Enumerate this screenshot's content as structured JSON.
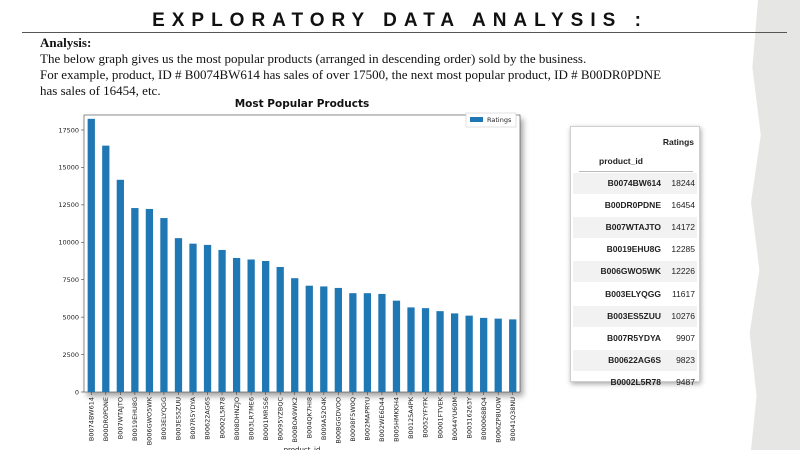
{
  "slide": {
    "title": "EXPLORATORY DATA ANALYSIS :",
    "analysis_heading": "Analysis:",
    "analysis_lines": [
      "The below graph gives  us the most popular products (arranged in descending order) sold by the business.",
      "For example, product, ID # B0074BW614 has sales of over 17500, the next most popular product, ID # B00DR0PDNE",
      "has sales of 16454, etc."
    ]
  },
  "chart_data": {
    "type": "bar",
    "title": "Most Popular Products",
    "xlabel": "product_id",
    "ylabel": "",
    "ylim": [
      0,
      18500
    ],
    "yticks": [
      0,
      2500,
      5000,
      7500,
      10000,
      12500,
      15000,
      17500
    ],
    "legend": "top-right",
    "color": "#1f77b4",
    "series": [
      {
        "name": "Ratings",
        "values": [
          18244,
          16454,
          14172,
          12285,
          12226,
          11617,
          10276,
          9907,
          9823,
          9487,
          8950,
          8850,
          8750,
          8350,
          7600,
          7100,
          7050,
          6950,
          6600,
          6600,
          6550,
          6100,
          5650,
          5600,
          5400,
          5250,
          5100,
          4950,
          4900,
          4850
        ]
      }
    ],
    "categories": [
      "B0074BW614",
      "B00DR0PDNE",
      "B007WTAJTO",
      "B0019EHU8G",
      "B006GWO5WK",
      "B003ELYQGG",
      "B003ES5ZUU",
      "B007R5YDYA",
      "B00622AG6S",
      "B0002L5R78",
      "B008DHNZJO",
      "B003LR7ME6",
      "B0001MR5S6",
      "B0095YZBQC",
      "B00BOA9WK2",
      "B004QK7HI8",
      "B009A52O4K",
      "B00BGGDVOO",
      "B0098F5W0Q",
      "B002MAPRYU",
      "B002WE6D44",
      "B005HMKKH4",
      "B00125A4PK",
      "B0052YFYFK",
      "B0001FTVEK",
      "B0044YU60M",
      "B00316263Y",
      "B000068BQ4",
      "B006ZP8UOW",
      "B0041Q38NU"
    ]
  },
  "table": {
    "column_header": "Ratings",
    "index_name": "product_id",
    "rows": [
      {
        "id": "B0074BW614",
        "value": "18244"
      },
      {
        "id": "B00DR0PDNE",
        "value": "16454"
      },
      {
        "id": "B007WTAJTO",
        "value": "14172"
      },
      {
        "id": "B0019EHU8G",
        "value": "12285"
      },
      {
        "id": "B006GWO5WK",
        "value": "12226"
      },
      {
        "id": "B003ELYQGG",
        "value": "11617"
      },
      {
        "id": "B003ES5ZUU",
        "value": "10276"
      },
      {
        "id": "B007R5YDYA",
        "value": "9907"
      },
      {
        "id": "B00622AG6S",
        "value": "9823"
      },
      {
        "id": "B0002L5R78",
        "value": "9487"
      }
    ]
  }
}
